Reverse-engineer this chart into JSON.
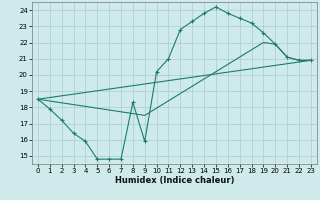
{
  "xlabel": "Humidex (Indice chaleur)",
  "background_color": "#ceeaea",
  "grid_color": "#aacccc",
  "line_color": "#1e7b6e",
  "xlim": [
    -0.5,
    23.5
  ],
  "ylim": [
    14.5,
    24.5
  ],
  "xticks": [
    0,
    1,
    2,
    3,
    4,
    5,
    6,
    7,
    8,
    9,
    10,
    11,
    12,
    13,
    14,
    15,
    16,
    17,
    18,
    19,
    20,
    21,
    22,
    23
  ],
  "yticks": [
    15,
    16,
    17,
    18,
    19,
    20,
    21,
    22,
    23,
    24
  ],
  "curve1_x": [
    0,
    1,
    2,
    3,
    4,
    5,
    6,
    7,
    8,
    9,
    10,
    11,
    12,
    13,
    14,
    15,
    16,
    17,
    18,
    19,
    20,
    21,
    22,
    23
  ],
  "curve1_y": [
    18.5,
    17.9,
    17.2,
    16.4,
    15.9,
    14.8,
    14.8,
    14.8,
    18.3,
    15.9,
    20.2,
    21.0,
    22.8,
    23.3,
    23.8,
    24.2,
    23.8,
    23.5,
    23.2,
    22.6,
    21.9,
    21.1,
    20.9,
    20.9
  ],
  "curve2_x": [
    0,
    23
  ],
  "curve2_y": [
    18.5,
    20.9
  ],
  "curve3_x": [
    0,
    9,
    19,
    20,
    21,
    22,
    23
  ],
  "curve3_y": [
    18.5,
    17.5,
    22.0,
    21.9,
    21.1,
    20.9,
    20.9
  ],
  "tick_fontsize": 5.0,
  "xlabel_fontsize": 6.0
}
